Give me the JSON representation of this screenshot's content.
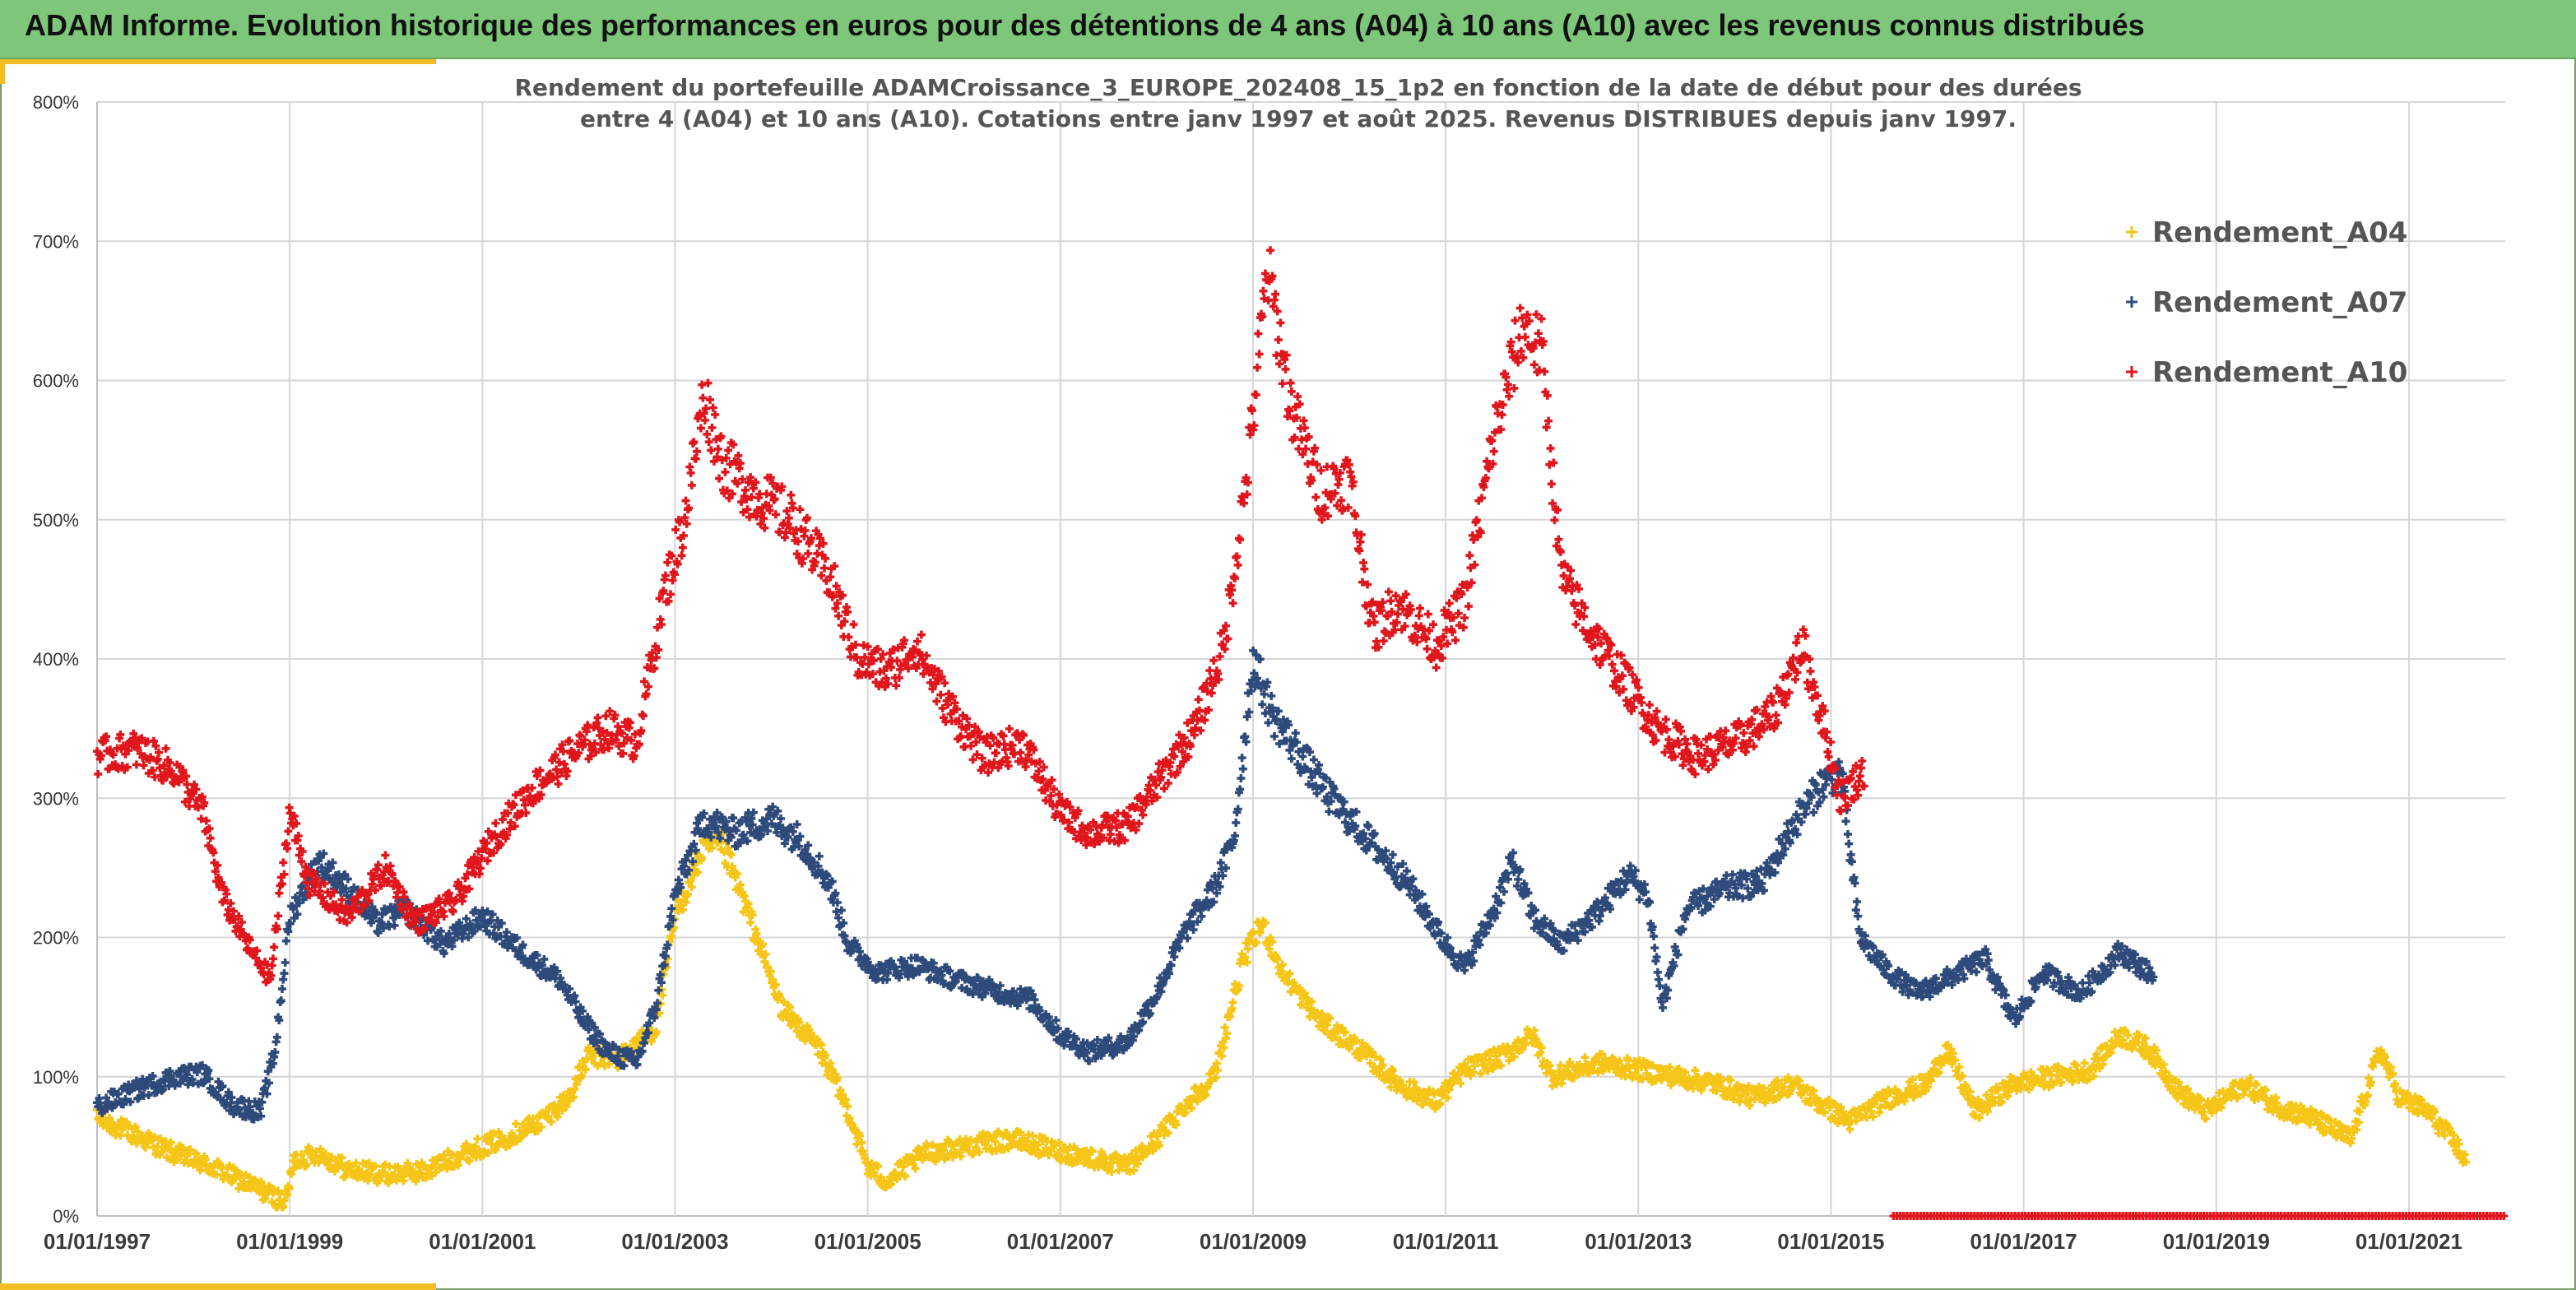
{
  "header": {
    "title": "ADAM Informe. Evolution historique des performances en euros pour des détentions de 4 ans (A04) à 10 ans (A10) avec les revenus connus distribués"
  },
  "colors": {
    "header_bg": "#7dc67a",
    "accent": "#f3be25",
    "A04": "#f5c518",
    "A07": "#2e4a7a",
    "A10": "#e0161d"
  },
  "chart_data": {
    "type": "scatter",
    "title_lines": [
      "Rendement du portefeuille ADAMCroissance_3_EUROPE_202408_15_1p2 en fonction de la date de début pour des durées",
      "entre 4 (A04) et 10 ans (A10). Cotations entre janv 1997 et août 2025. Revenus DISTRIBUES depuis janv 1997."
    ],
    "x_ticks": [
      "01/01/1997",
      "01/01/1999",
      "01/01/2001",
      "01/01/2003",
      "01/01/2005",
      "01/01/2007",
      "01/01/2009",
      "01/01/2011",
      "01/01/2013",
      "01/01/2015",
      "01/01/2017",
      "01/01/2019",
      "01/01/2021"
    ],
    "y_ticks": [
      "0%",
      "100%",
      "200%",
      "300%",
      "400%",
      "500%",
      "600%",
      "700%",
      "800%"
    ],
    "xlim": [
      1997.0,
      2022.0
    ],
    "ylim": [
      0,
      800
    ],
    "marker": "+",
    "legend_position": "top-right",
    "grid": true,
    "series": [
      {
        "name": "Rendement_A04",
        "color": "#f5c518",
        "x_range": [
          1997.0,
          2021.6
        ],
        "anchors": [
          [
            1997.0,
            70
          ],
          [
            1997.4,
            58
          ],
          [
            1997.8,
            45
          ],
          [
            1998.2,
            35
          ],
          [
            1998.6,
            22
          ],
          [
            1998.95,
            10
          ],
          [
            1999.05,
            40
          ],
          [
            1999.3,
            45
          ],
          [
            1999.6,
            33
          ],
          [
            2000.0,
            30
          ],
          [
            2000.4,
            32
          ],
          [
            2000.8,
            45
          ],
          [
            2001.2,
            55
          ],
          [
            2001.6,
            68
          ],
          [
            2001.9,
            85
          ],
          [
            2002.1,
            115
          ],
          [
            2002.4,
            112
          ],
          [
            2002.8,
            135
          ],
          [
            2003.0,
            215
          ],
          [
            2003.3,
            265
          ],
          [
            2003.5,
            265
          ],
          [
            2003.8,
            210
          ],
          [
            2004.1,
            150
          ],
          [
            2004.5,
            120
          ],
          [
            2004.8,
            75
          ],
          [
            2005.0,
            35
          ],
          [
            2005.2,
            25
          ],
          [
            2005.6,
            45
          ],
          [
            2006.0,
            50
          ],
          [
            2006.5,
            55
          ],
          [
            2006.9,
            48
          ],
          [
            2007.3,
            42
          ],
          [
            2007.7,
            35
          ],
          [
            2008.0,
            55
          ],
          [
            2008.3,
            80
          ],
          [
            2008.6,
            100
          ],
          [
            2008.9,
            185
          ],
          [
            2009.1,
            210
          ],
          [
            2009.3,
            175
          ],
          [
            2009.7,
            140
          ],
          [
            2010.1,
            120
          ],
          [
            2010.5,
            95
          ],
          [
            2010.9,
            82
          ],
          [
            2011.2,
            105
          ],
          [
            2011.6,
            115
          ],
          [
            2011.9,
            130
          ],
          [
            2012.1,
            100
          ],
          [
            2012.6,
            110
          ],
          [
            2013.0,
            105
          ],
          [
            2013.4,
            100
          ],
          [
            2013.8,
            95
          ],
          [
            2014.2,
            85
          ],
          [
            2014.6,
            95
          ],
          [
            2014.9,
            80
          ],
          [
            2015.2,
            68
          ],
          [
            2015.6,
            85
          ],
          [
            2016.0,
            95
          ],
          [
            2016.2,
            120
          ],
          [
            2016.5,
            75
          ],
          [
            2016.9,
            95
          ],
          [
            2017.3,
            100
          ],
          [
            2017.7,
            105
          ],
          [
            2018.0,
            130
          ],
          [
            2018.3,
            120
          ],
          [
            2018.6,
            90
          ],
          [
            2018.9,
            75
          ],
          [
            2019.3,
            95
          ],
          [
            2019.6,
            80
          ],
          [
            2020.0,
            70
          ],
          [
            2020.4,
            55
          ],
          [
            2020.7,
            120
          ],
          [
            2020.9,
            85
          ],
          [
            2021.2,
            75
          ],
          [
            2021.5,
            50
          ],
          [
            2021.6,
            38
          ]
        ]
      },
      {
        "name": "Rendement_A07",
        "color": "#2e4a7a",
        "x_range": [
          1997.0,
          2018.35
        ],
        "anchors": [
          [
            1997.0,
            78
          ],
          [
            1997.4,
            90
          ],
          [
            1997.8,
            100
          ],
          [
            1998.1,
            102
          ],
          [
            1998.4,
            80
          ],
          [
            1998.7,
            75
          ],
          [
            1998.85,
            120
          ],
          [
            1999.0,
            215
          ],
          [
            1999.3,
            255
          ],
          [
            1999.6,
            235
          ],
          [
            1999.9,
            210
          ],
          [
            2000.2,
            220
          ],
          [
            2000.6,
            195
          ],
          [
            2001.0,
            215
          ],
          [
            2001.4,
            190
          ],
          [
            2001.8,
            170
          ],
          [
            2002.05,
            140
          ],
          [
            2002.3,
            118
          ],
          [
            2002.6,
            110
          ],
          [
            2002.8,
            150
          ],
          [
            2003.0,
            230
          ],
          [
            2003.3,
            285
          ],
          [
            2003.6,
            275
          ],
          [
            2004.0,
            285
          ],
          [
            2004.3,
            270
          ],
          [
            2004.6,
            240
          ],
          [
            2004.8,
            195
          ],
          [
            2005.1,
            175
          ],
          [
            2005.5,
            180
          ],
          [
            2005.9,
            170
          ],
          [
            2006.3,
            162
          ],
          [
            2006.7,
            155
          ],
          [
            2007.0,
            130
          ],
          [
            2007.3,
            118
          ],
          [
            2007.7,
            125
          ],
          [
            2008.0,
            160
          ],
          [
            2008.3,
            205
          ],
          [
            2008.6,
            235
          ],
          [
            2008.8,
            270
          ],
          [
            2009.0,
            400
          ],
          [
            2009.2,
            360
          ],
          [
            2009.5,
            330
          ],
          [
            2009.8,
            300
          ],
          [
            2010.2,
            270
          ],
          [
            2010.6,
            240
          ],
          [
            2011.0,
            195
          ],
          [
            2011.2,
            178
          ],
          [
            2011.5,
            220
          ],
          [
            2011.7,
            255
          ],
          [
            2011.9,
            215
          ],
          [
            2012.2,
            195
          ],
          [
            2012.6,
            220
          ],
          [
            2012.9,
            245
          ],
          [
            2013.1,
            230
          ],
          [
            2013.25,
            150
          ],
          [
            2013.5,
            220
          ],
          [
            2013.9,
            235
          ],
          [
            2014.3,
            240
          ],
          [
            2014.6,
            280
          ],
          [
            2014.9,
            310
          ],
          [
            2015.1,
            320
          ],
          [
            2015.3,
            200
          ],
          [
            2015.6,
            175
          ],
          [
            2015.9,
            160
          ],
          [
            2016.2,
            170
          ],
          [
            2016.6,
            185
          ],
          [
            2016.9,
            140
          ],
          [
            2017.2,
            175
          ],
          [
            2017.6,
            160
          ],
          [
            2018.0,
            190
          ],
          [
            2018.35,
            172
          ]
        ]
      },
      {
        "name": "Rendement_A10",
        "color": "#e0161d",
        "x_range": [
          1997.0,
          2015.35
        ],
        "anchors": [
          [
            1997.0,
            330
          ],
          [
            1997.4,
            335
          ],
          [
            1997.8,
            320
          ],
          [
            1998.1,
            290
          ],
          [
            1998.3,
            230
          ],
          [
            1998.6,
            190
          ],
          [
            1998.8,
            170
          ],
          [
            1999.0,
            290
          ],
          [
            1999.2,
            240
          ],
          [
            1999.6,
            215
          ],
          [
            2000.0,
            250
          ],
          [
            2000.3,
            210
          ],
          [
            2000.7,
            225
          ],
          [
            2001.1,
            270
          ],
          [
            2001.5,
            305
          ],
          [
            2001.9,
            330
          ],
          [
            2002.3,
            350
          ],
          [
            2002.6,
            340
          ],
          [
            2002.9,
            450
          ],
          [
            2003.1,
            500
          ],
          [
            2003.3,
            590
          ],
          [
            2003.5,
            540
          ],
          [
            2003.8,
            520
          ],
          [
            2004.2,
            500
          ],
          [
            2004.6,
            460
          ],
          [
            2004.9,
            400
          ],
          [
            2005.2,
            390
          ],
          [
            2005.5,
            410
          ],
          [
            2005.8,
            370
          ],
          [
            2006.2,
            330
          ],
          [
            2006.6,
            340
          ],
          [
            2007.0,
            290
          ],
          [
            2007.3,
            275
          ],
          [
            2007.7,
            280
          ],
          [
            2008.0,
            310
          ],
          [
            2008.4,
            350
          ],
          [
            2008.7,
            410
          ],
          [
            2008.95,
            540
          ],
          [
            2009.15,
            680
          ],
          [
            2009.4,
            580
          ],
          [
            2009.7,
            520
          ],
          [
            2010.0,
            530
          ],
          [
            2010.25,
            420
          ],
          [
            2010.5,
            440
          ],
          [
            2010.9,
            410
          ],
          [
            2011.2,
            440
          ],
          [
            2011.5,
            560
          ],
          [
            2011.8,
            640
          ],
          [
            2012.0,
            620
          ],
          [
            2012.2,
            460
          ],
          [
            2012.5,
            420
          ],
          [
            2012.9,
            380
          ],
          [
            2013.2,
            350
          ],
          [
            2013.6,
            330
          ],
          [
            2014.0,
            340
          ],
          [
            2014.4,
            360
          ],
          [
            2014.7,
            410
          ],
          [
            2014.9,
            360
          ],
          [
            2015.1,
            300
          ],
          [
            2015.35,
            320
          ]
        ]
      },
      {
        "name": "",
        "color": "#e0161d",
        "x_range": [
          2015.65,
          2022.0
        ],
        "anchors": [
          [
            2015.65,
            0
          ],
          [
            2022.0,
            0
          ]
        ]
      }
    ]
  }
}
